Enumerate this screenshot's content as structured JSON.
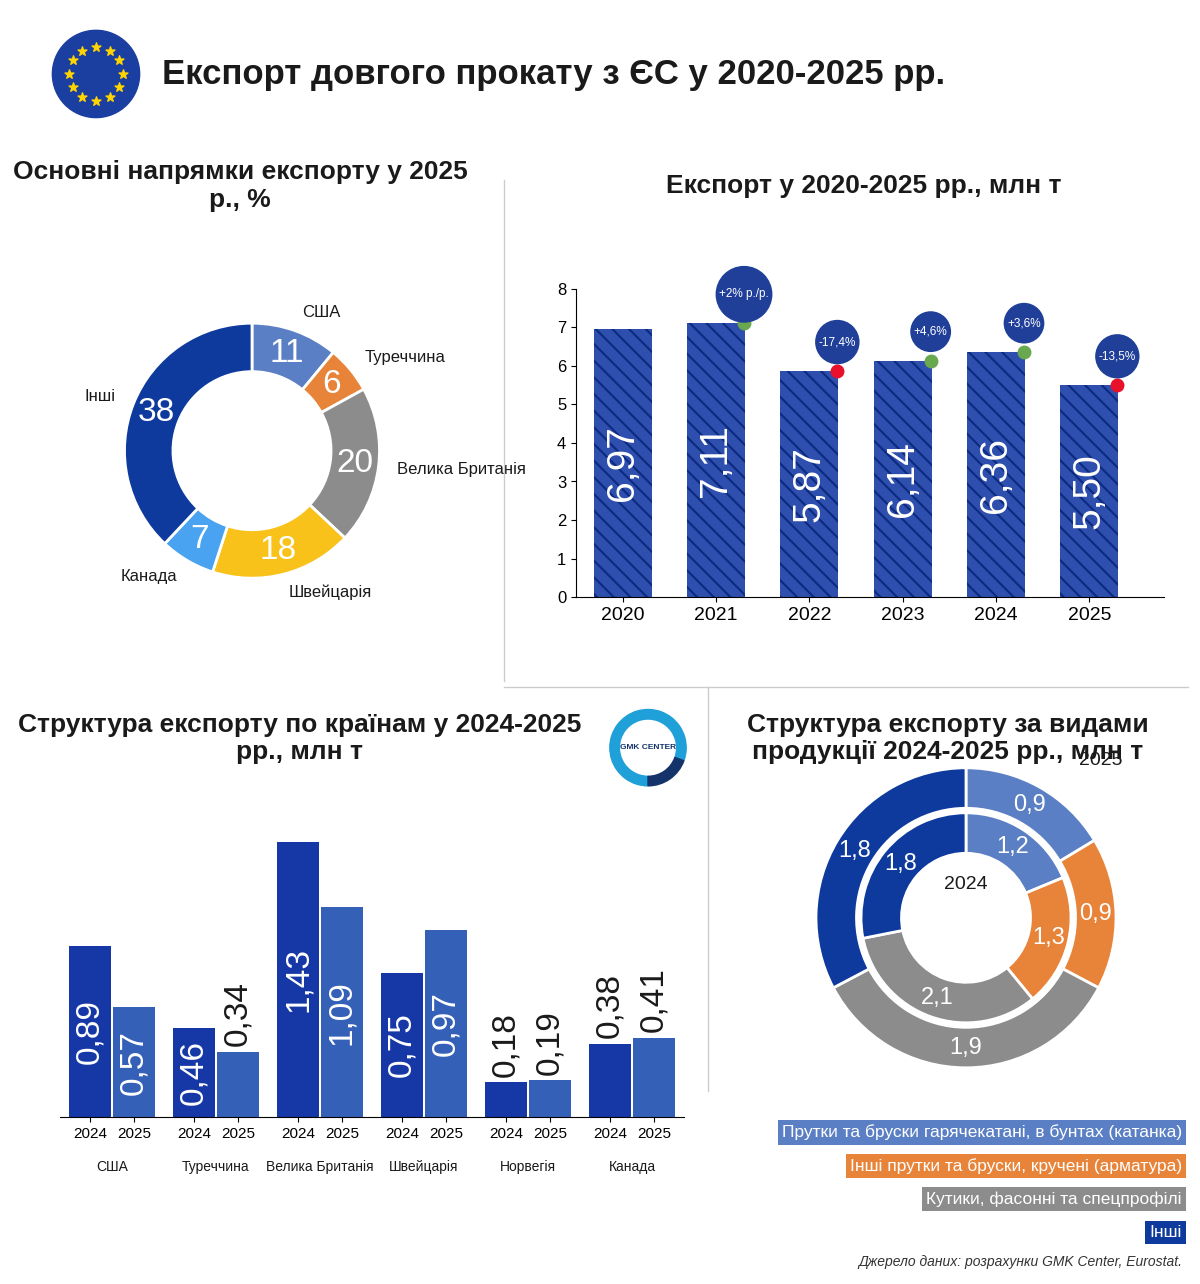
{
  "title": "Експорт довгого прокату з ЄС у 2020-2025 рр.",
  "source": "Джерело даних: розрахунки GMK Center, Eurostat.",
  "logo": "GMK CENTER",
  "chart_data": [
    {
      "type": "donut",
      "title": "Основні напрямки експорту у 2025 р., %",
      "categories": [
        "США",
        "Туреччина",
        "Велика Британія",
        "Швейцарія",
        "Канада",
        "Інші"
      ],
      "values": [
        11,
        6,
        20,
        18,
        7,
        38
      ],
      "colors": [
        "#5b7fc4",
        "#e8843a",
        "#8c8c8c",
        "#f9c21a",
        "#4aa3f0",
        "#0d3a9c"
      ],
      "data_labels": true
    },
    {
      "type": "bar",
      "title": "Експорт у 2020-2025 рр., млн т",
      "categories": [
        "2020",
        "2021",
        "2022",
        "2023",
        "2024",
        "2025"
      ],
      "values": [
        6.97,
        7.11,
        5.87,
        6.14,
        6.36,
        5.5
      ],
      "value_labels": [
        "6,97",
        "7,11",
        "5,87",
        "6,14",
        "6,36",
        "5,50"
      ],
      "annotations": [
        null,
        "+2% р./р.",
        "-17,4%",
        "+4,6%",
        "+3,6%",
        "-13,5%"
      ],
      "color": "#2e4fae",
      "ylim": [
        0,
        8
      ],
      "yticks": [
        0,
        1,
        2,
        3,
        4,
        5,
        6,
        7,
        8
      ],
      "data_labels": true
    },
    {
      "type": "bar",
      "title": "Структура експорту по країнам у 2024-2025 рр., млн т",
      "categories": [
        "США",
        "Туреччина",
        "Велика Британія",
        "Швейцарія",
        "Норвегія",
        "Канада"
      ],
      "series": [
        {
          "name": "2024",
          "color": "#1538a6",
          "values": [
            0.89,
            0.46,
            1.43,
            0.75,
            0.18,
            0.38
          ],
          "value_labels": [
            "0,89",
            "0,46",
            "1,43",
            "0,75",
            "0,18",
            "0,38"
          ]
        },
        {
          "name": "2025",
          "color": "#3560b8",
          "values": [
            0.57,
            0.34,
            1.09,
            0.97,
            0.19,
            0.41
          ],
          "value_labels": [
            "0,57",
            "0,34",
            "1,09",
            "0,97",
            "0,19",
            "0,41"
          ]
        }
      ],
      "ylim": [
        0,
        1.5
      ],
      "tick_labels": "x",
      "data_labels": true
    },
    {
      "type": "donut",
      "title": "Структура експорту за видами продукції 2024-2025 рр., млн т",
      "categories": [
        "Прутки та бруски гарячекатані, в бунтах (катанка)",
        "Інші прутки та бруски, кручені (арматура)",
        "Кутики, фасонні та спецпрофілі",
        "Інші"
      ],
      "colors": [
        "#5b7fc4",
        "#e8843a",
        "#8c8c8c",
        "#0d3a9c"
      ],
      "series": [
        {
          "name": "2025",
          "values": [
            0.9,
            0.9,
            1.9,
            1.8
          ],
          "value_labels": [
            "0,9",
            "0,9",
            "1,9",
            "1,8"
          ]
        },
        {
          "name": "2024",
          "values": [
            1.2,
            1.3,
            2.1,
            1.8
          ],
          "value_labels": [
            "1,2",
            "1,3",
            "2,1",
            "1,8"
          ]
        }
      ],
      "data_labels": true
    }
  ]
}
